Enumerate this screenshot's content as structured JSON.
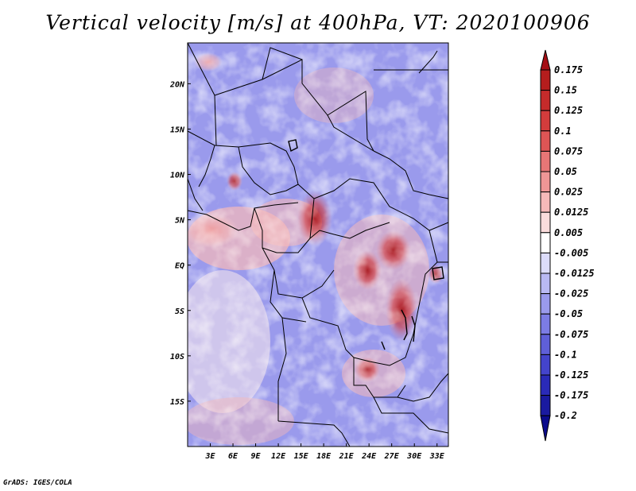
{
  "title": "Vertical velocity [m/s] at 400hPa, VT: 2020100906",
  "credit": "GrADS: IGES/COLA",
  "map": {
    "lat_labels": [
      "20N",
      "15N",
      "10N",
      "5N",
      "EQ",
      "5S",
      "10S",
      "15S"
    ],
    "lon_labels": [
      "3E",
      "6E",
      "9E",
      "12E",
      "15E",
      "18E",
      "21E",
      "24E",
      "27E",
      "30E",
      "33E"
    ],
    "lon_range": [
      0,
      34.5
    ],
    "lat_range": [
      -20,
      24.5
    ]
  },
  "colorbar": {
    "labels": [
      "0.175",
      "0.15",
      "0.125",
      "0.1",
      "0.075",
      "0.05",
      "0.025",
      "0.0125",
      "0.005",
      "-0.005",
      "-0.0125",
      "-0.025",
      "-0.05",
      "-0.075",
      "-0.1",
      "-0.125",
      "-0.175",
      "-0.2"
    ],
    "colors": [
      "#a50f15",
      "#b51d1d",
      "#c52b2b",
      "#d33c3c",
      "#de5555",
      "#e77676",
      "#ef9696",
      "#f6b9b9",
      "#fbdcdc",
      "#ffffff",
      "#dcdcfb",
      "#b9b9f3",
      "#9a9aec",
      "#7c7ce4",
      "#5f5fd8",
      "#4444cc",
      "#2a2ab8",
      "#1a1aa0",
      "#0b0b8c"
    ]
  }
}
